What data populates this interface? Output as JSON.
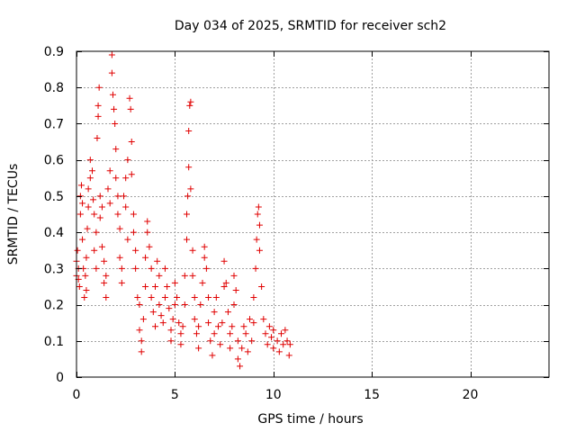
{
  "chart_data": {
    "type": "scatter",
    "title": "Day 034 of 2025, SRMTID for receiver sch2",
    "xlabel": "GPS time / hours",
    "ylabel": "SRMTID / TECUs",
    "xlim": [
      0,
      24
    ],
    "ylim": [
      0,
      0.9
    ],
    "xticks": [
      0,
      5,
      10,
      15,
      20
    ],
    "xtick_labels": [
      "0",
      "5",
      "10",
      "15",
      "20"
    ],
    "yticks": [
      0,
      0.1,
      0.2,
      0.3,
      0.4,
      0.5,
      0.6,
      0.7,
      0.8,
      0.9
    ],
    "ytick_labels": [
      "0",
      "0.1",
      "0.2",
      "0.3",
      "0.4",
      "0.5",
      "0.6",
      "0.7",
      "0.8",
      "0.9"
    ],
    "grid": true,
    "marker": "plus",
    "color": "#e00000",
    "series": [
      {
        "name": "SRMTID",
        "points": [
          [
            0.0,
            0.32
          ],
          [
            0.0,
            0.28
          ],
          [
            0.05,
            0.35
          ],
          [
            0.1,
            0.27
          ],
          [
            0.1,
            0.3
          ],
          [
            0.15,
            0.25
          ],
          [
            0.2,
            0.45
          ],
          [
            0.2,
            0.5
          ],
          [
            0.25,
            0.53
          ],
          [
            0.3,
            0.48
          ],
          [
            0.3,
            0.38
          ],
          [
            0.35,
            0.3
          ],
          [
            0.4,
            0.22
          ],
          [
            0.45,
            0.28
          ],
          [
            0.5,
            0.33
          ],
          [
            0.5,
            0.24
          ],
          [
            0.55,
            0.41
          ],
          [
            0.6,
            0.47
          ],
          [
            0.6,
            0.52
          ],
          [
            0.7,
            0.55
          ],
          [
            0.7,
            0.6
          ],
          [
            0.8,
            0.57
          ],
          [
            0.85,
            0.49
          ],
          [
            0.9,
            0.45
          ],
          [
            0.9,
            0.35
          ],
          [
            1.0,
            0.3
          ],
          [
            1.0,
            0.4
          ],
          [
            1.05,
            0.66
          ],
          [
            1.1,
            0.72
          ],
          [
            1.1,
            0.75
          ],
          [
            1.15,
            0.8
          ],
          [
            1.2,
            0.44
          ],
          [
            1.2,
            0.5
          ],
          [
            1.3,
            0.47
          ],
          [
            1.3,
            0.36
          ],
          [
            1.4,
            0.32
          ],
          [
            1.4,
            0.26
          ],
          [
            1.5,
            0.22
          ],
          [
            1.5,
            0.28
          ],
          [
            1.6,
            0.52
          ],
          [
            1.7,
            0.57
          ],
          [
            1.7,
            0.48
          ],
          [
            1.8,
            0.84
          ],
          [
            1.8,
            0.89
          ],
          [
            1.85,
            0.78
          ],
          [
            1.9,
            0.74
          ],
          [
            1.95,
            0.7
          ],
          [
            2.0,
            0.63
          ],
          [
            2.0,
            0.55
          ],
          [
            2.1,
            0.5
          ],
          [
            2.1,
            0.45
          ],
          [
            2.2,
            0.41
          ],
          [
            2.2,
            0.33
          ],
          [
            2.3,
            0.3
          ],
          [
            2.3,
            0.26
          ],
          [
            2.4,
            0.5
          ],
          [
            2.5,
            0.55
          ],
          [
            2.5,
            0.47
          ],
          [
            2.6,
            0.38
          ],
          [
            2.6,
            0.6
          ],
          [
            2.7,
            0.77
          ],
          [
            2.75,
            0.74
          ],
          [
            2.8,
            0.65
          ],
          [
            2.8,
            0.56
          ],
          [
            2.9,
            0.45
          ],
          [
            2.9,
            0.4
          ],
          [
            3.0,
            0.35
          ],
          [
            3.0,
            0.3
          ],
          [
            3.1,
            0.22
          ],
          [
            3.2,
            0.2
          ],
          [
            3.2,
            0.13
          ],
          [
            3.3,
            0.07
          ],
          [
            3.3,
            0.1
          ],
          [
            3.4,
            0.16
          ],
          [
            3.5,
            0.25
          ],
          [
            3.5,
            0.33
          ],
          [
            3.6,
            0.4
          ],
          [
            3.6,
            0.43
          ],
          [
            3.7,
            0.36
          ],
          [
            3.8,
            0.3
          ],
          [
            3.8,
            0.22
          ],
          [
            3.9,
            0.18
          ],
          [
            4.0,
            0.14
          ],
          [
            4.0,
            0.25
          ],
          [
            4.1,
            0.32
          ],
          [
            4.2,
            0.28
          ],
          [
            4.2,
            0.2
          ],
          [
            4.3,
            0.17
          ],
          [
            4.4,
            0.15
          ],
          [
            4.5,
            0.22
          ],
          [
            4.5,
            0.3
          ],
          [
            4.6,
            0.25
          ],
          [
            4.7,
            0.19
          ],
          [
            4.8,
            0.13
          ],
          [
            4.8,
            0.1
          ],
          [
            4.9,
            0.16
          ],
          [
            5.0,
            0.2
          ],
          [
            5.0,
            0.26
          ],
          [
            5.1,
            0.22
          ],
          [
            5.2,
            0.15
          ],
          [
            5.3,
            0.12
          ],
          [
            5.3,
            0.09
          ],
          [
            5.4,
            0.14
          ],
          [
            5.5,
            0.2
          ],
          [
            5.5,
            0.28
          ],
          [
            5.6,
            0.38
          ],
          [
            5.6,
            0.45
          ],
          [
            5.65,
            0.5
          ],
          [
            5.7,
            0.58
          ],
          [
            5.7,
            0.68
          ],
          [
            5.75,
            0.75
          ],
          [
            5.8,
            0.76
          ],
          [
            5.8,
            0.52
          ],
          [
            5.9,
            0.35
          ],
          [
            5.9,
            0.28
          ],
          [
            6.0,
            0.22
          ],
          [
            6.0,
            0.16
          ],
          [
            6.1,
            0.12
          ],
          [
            6.2,
            0.08
          ],
          [
            6.2,
            0.14
          ],
          [
            6.3,
            0.2
          ],
          [
            6.4,
            0.26
          ],
          [
            6.5,
            0.33
          ],
          [
            6.5,
            0.36
          ],
          [
            6.6,
            0.3
          ],
          [
            6.7,
            0.22
          ],
          [
            6.7,
            0.15
          ],
          [
            6.8,
            0.1
          ],
          [
            6.9,
            0.06
          ],
          [
            7.0,
            0.12
          ],
          [
            7.0,
            0.18
          ],
          [
            7.1,
            0.22
          ],
          [
            7.2,
            0.14
          ],
          [
            7.3,
            0.09
          ],
          [
            7.4,
            0.15
          ],
          [
            7.5,
            0.25
          ],
          [
            7.5,
            0.32
          ],
          [
            7.6,
            0.26
          ],
          [
            7.7,
            0.18
          ],
          [
            7.8,
            0.12
          ],
          [
            7.8,
            0.08
          ],
          [
            7.9,
            0.14
          ],
          [
            8.0,
            0.2
          ],
          [
            8.0,
            0.28
          ],
          [
            8.1,
            0.24
          ],
          [
            8.2,
            0.1
          ],
          [
            8.2,
            0.05
          ],
          [
            8.3,
            0.03
          ],
          [
            8.4,
            0.08
          ],
          [
            8.5,
            0.14
          ],
          [
            8.6,
            0.12
          ],
          [
            8.7,
            0.07
          ],
          [
            8.8,
            0.16
          ],
          [
            8.9,
            0.1
          ],
          [
            9.0,
            0.15
          ],
          [
            9.0,
            0.22
          ],
          [
            9.1,
            0.3
          ],
          [
            9.15,
            0.38
          ],
          [
            9.2,
            0.45
          ],
          [
            9.25,
            0.47
          ],
          [
            9.3,
            0.42
          ],
          [
            9.3,
            0.35
          ],
          [
            9.4,
            0.25
          ],
          [
            9.5,
            0.16
          ],
          [
            9.6,
            0.12
          ],
          [
            9.7,
            0.09
          ],
          [
            9.8,
            0.14
          ],
          [
            9.9,
            0.11
          ],
          [
            10.0,
            0.08
          ],
          [
            10.0,
            0.13
          ],
          [
            10.2,
            0.1
          ],
          [
            10.3,
            0.07
          ],
          [
            10.4,
            0.12
          ],
          [
            10.5,
            0.09
          ],
          [
            10.6,
            0.13
          ],
          [
            10.7,
            0.1
          ],
          [
            10.8,
            0.06
          ],
          [
            10.85,
            0.09
          ]
        ]
      }
    ]
  }
}
